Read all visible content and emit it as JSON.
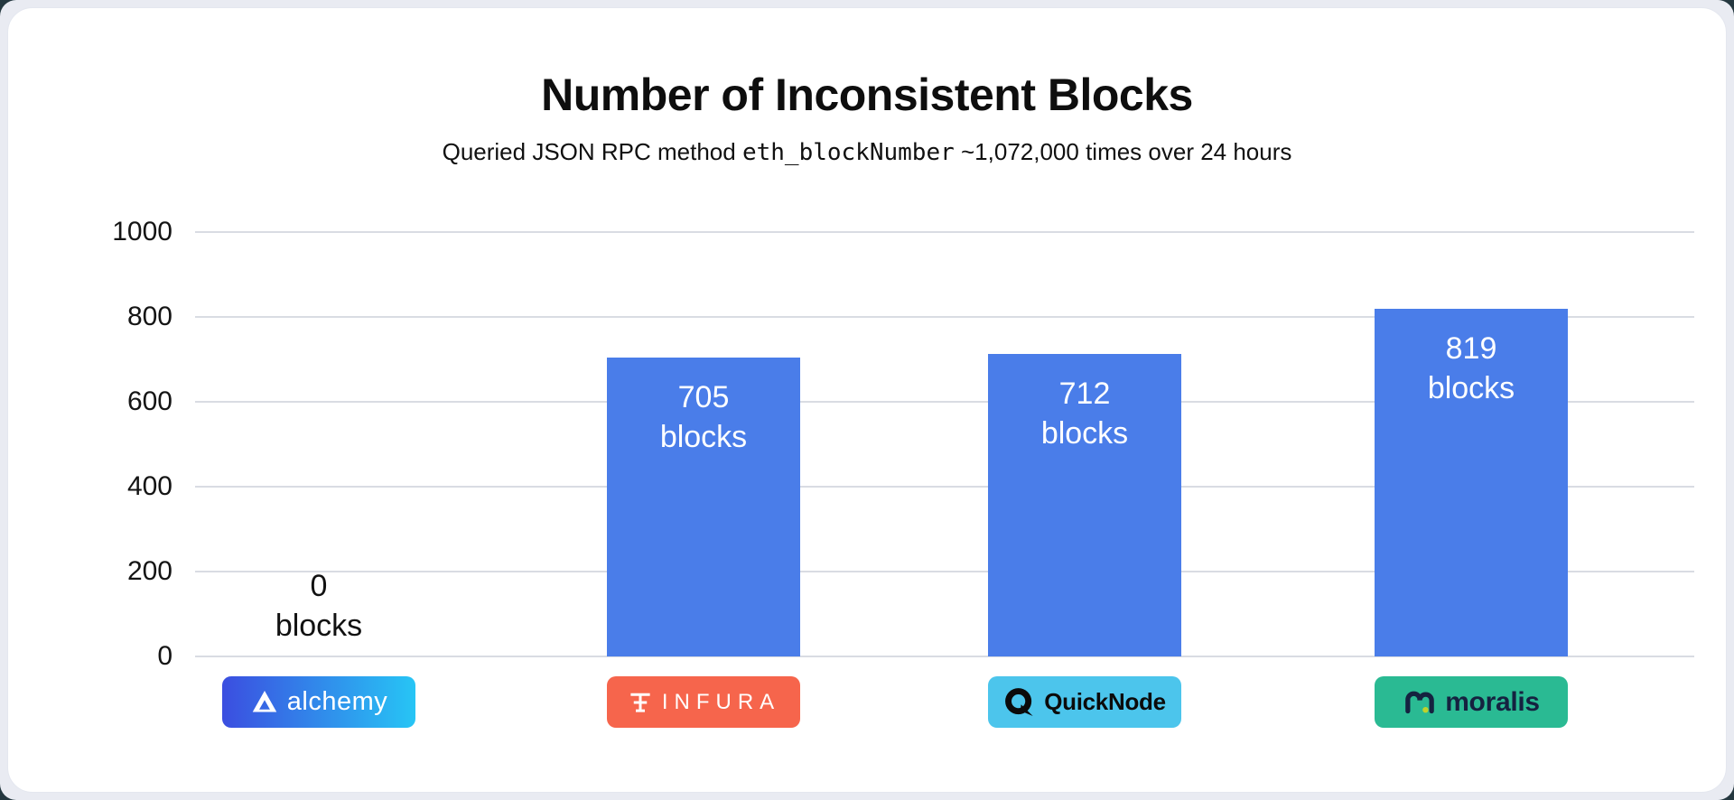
{
  "chart_data": {
    "type": "bar",
    "title": "Number of Inconsistent Blocks",
    "subtitle": {
      "prefix": "Queried JSON RPC method ",
      "code": "eth_blockNumber",
      "suffix": " ~1,072,000 times over 24 hours"
    },
    "xlabel": "",
    "ylabel": "",
    "ylim": [
      0,
      1000
    ],
    "grid": true,
    "legend": "none",
    "ytick_labels": [
      "1000",
      "800",
      "600",
      "400",
      "200",
      "0"
    ],
    "categories": [
      "alchemy",
      "INFURA",
      "QuickNode",
      "moralis"
    ],
    "values": [
      0,
      705,
      712,
      819
    ],
    "unit": "blocks",
    "bar_color": "#4a7de9",
    "grid_color": "#d9dce3",
    "providers": [
      {
        "name": "alchemy",
        "value": 0,
        "value_text": "0",
        "unit_text": "blocks",
        "badge": {
          "label": "alchemy",
          "icon": "alchemy-logo-icon",
          "bg_start": "#3b4ee0",
          "bg_end": "#27c5f5",
          "text_color": "#ffffff"
        }
      },
      {
        "name": "INFURA",
        "value": 705,
        "value_text": "705",
        "unit_text": "blocks",
        "badge": {
          "label": "INFURA",
          "icon": "infura-logo-icon",
          "bg": "#f6654c",
          "text_color": "#ffffff"
        }
      },
      {
        "name": "QuickNode",
        "value": 712,
        "value_text": "712",
        "unit_text": "blocks",
        "badge": {
          "label": "QuickNode",
          "icon": "quicknode-logo-icon",
          "bg": "#4cc5ec",
          "text_color": "#0b0b0b"
        }
      },
      {
        "name": "moralis",
        "value": 819,
        "value_text": "819",
        "unit_text": "blocks",
        "badge": {
          "label": "moralis",
          "icon": "moralis-logo-icon",
          "bg": "#2aba93",
          "text_color": "#152240",
          "dot_color": "#bfd22c"
        }
      }
    ]
  }
}
